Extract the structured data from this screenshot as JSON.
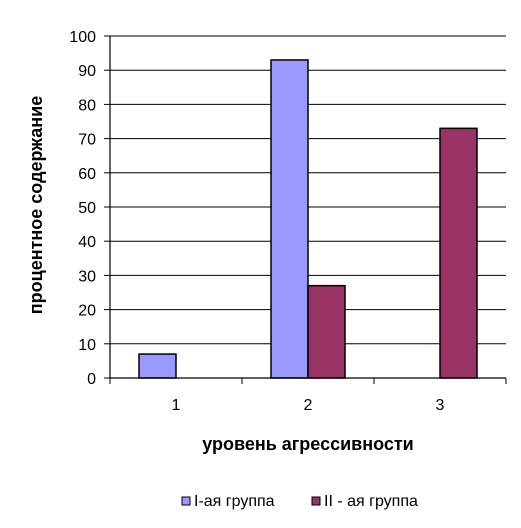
{
  "chart_data": {
    "type": "bar",
    "categories": [
      "1",
      "2",
      "3"
    ],
    "series": [
      {
        "name": "I-ая группа",
        "values": [
          7,
          93,
          0
        ],
        "color": "#9999ff"
      },
      {
        "name": "II - ая группа",
        "values": [
          0,
          27,
          73
        ],
        "color": "#993366"
      }
    ],
    "xlabel": "уровень агрессивности",
    "ylabel": "процентное содержание",
    "ylim": [
      0,
      100
    ],
    "yticks": [
      0,
      10,
      20,
      30,
      40,
      50,
      60,
      70,
      80,
      90,
      100
    ],
    "grid": true,
    "legend": "bottom"
  }
}
